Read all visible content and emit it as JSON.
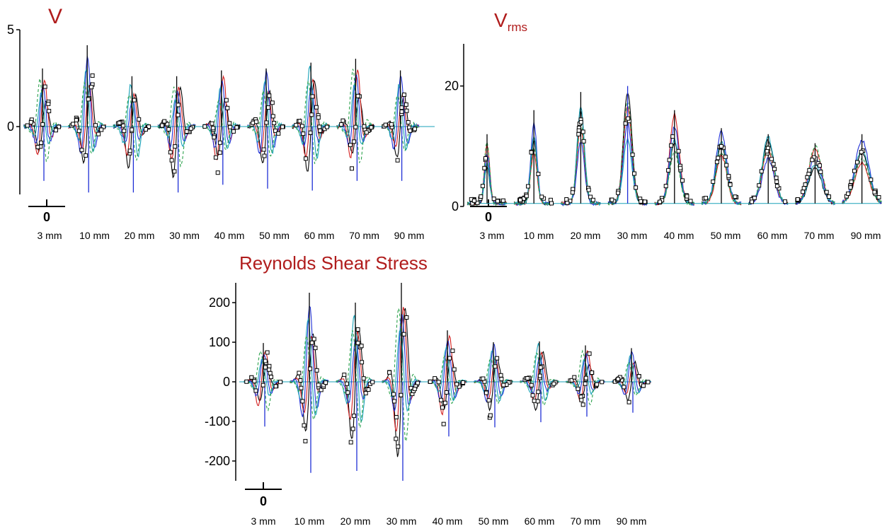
{
  "chart_data": [
    {
      "type": "line",
      "title": "V",
      "categories": [
        "3 mm",
        "10 mm",
        "20 mm",
        "30 mm",
        "40 mm",
        "50 mm",
        "60 mm",
        "70 mm",
        "90 mm"
      ],
      "y_ticks": [
        "5",
        "0"
      ],
      "x_origin_tick": "0",
      "ylim": [
        -3.5,
        5
      ],
      "series": [
        {
          "color": "#000000",
          "markers": "open-square"
        },
        {
          "color": "#d42020"
        },
        {
          "color": "#1f2fd6"
        },
        {
          "color": "#19a2b8"
        },
        {
          "color": "#2aa14a",
          "dash": true
        }
      ],
      "station_peaks": [
        {
          "max": 3.0,
          "min": -2.8
        },
        {
          "max": 4.2,
          "min": -3.4
        },
        {
          "max": 2.6,
          "min": -3.4
        },
        {
          "max": 2.6,
          "min": -3.4
        },
        {
          "max": 2.9,
          "min": -3.0
        },
        {
          "max": 3.0,
          "min": -3.2
        },
        {
          "max": 3.3,
          "min": -3.3
        },
        {
          "max": 3.5,
          "min": -2.8
        },
        {
          "max": 2.9,
          "min": -2.8
        }
      ]
    },
    {
      "type": "line",
      "title": "V",
      "title_sub": "rms",
      "categories": [
        "3 mm",
        "10 mm",
        "20 mm",
        "30 mm",
        "40 mm",
        "50 mm",
        "60 mm",
        "70 mm",
        "90 mm"
      ],
      "y_ticks": [
        "20",
        "0"
      ],
      "x_origin_tick": "0",
      "ylim": [
        0,
        27
      ],
      "series": [
        {
          "color": "#000000",
          "markers": "open-square"
        },
        {
          "color": "#d42020"
        },
        {
          "color": "#1f2fd6"
        },
        {
          "color": "#19a2b8"
        },
        {
          "color": "#2aa14a",
          "dash": true
        }
      ],
      "station_peaks": [
        {
          "max": 12,
          "base": 0.5
        },
        {
          "max": 16,
          "base": 0.5
        },
        {
          "max": 19,
          "base": 0.5
        },
        {
          "max": 20,
          "base": 0.5
        },
        {
          "max": 16,
          "base": 0.5
        },
        {
          "max": 13,
          "base": 0.5
        },
        {
          "max": 12,
          "base": 0.5
        },
        {
          "max": 10.5,
          "base": 0.5
        },
        {
          "max": 12,
          "base": 0.5
        }
      ]
    },
    {
      "type": "line",
      "title": "Reynolds Shear Stress",
      "categories": [
        "3 mm",
        "10 mm",
        "20 mm",
        "30 mm",
        "40 mm",
        "50 mm",
        "60 mm",
        "70 mm",
        "90 mm"
      ],
      "y_ticks": [
        "200",
        "100",
        "0",
        "-100",
        "-200"
      ],
      "x_origin_tick": "0",
      "ylim": [
        -250,
        250
      ],
      "series": [
        {
          "color": "#000000",
          "markers": "open-square"
        },
        {
          "color": "#d42020"
        },
        {
          "color": "#1f2fd6"
        },
        {
          "color": "#19a2b8"
        },
        {
          "color": "#2aa14a",
          "dash": true
        }
      ],
      "station_peaks": [
        {
          "max": 98,
          "min": -113
        },
        {
          "max": 225,
          "min": -230
        },
        {
          "max": 200,
          "min": -225
        },
        {
          "max": 250,
          "min": -250
        },
        {
          "max": 130,
          "min": -138
        },
        {
          "max": 100,
          "min": -115
        },
        {
          "max": 102,
          "min": -102
        },
        {
          "max": 92,
          "min": -88
        },
        {
          "max": 85,
          "min": -78
        }
      ]
    }
  ]
}
